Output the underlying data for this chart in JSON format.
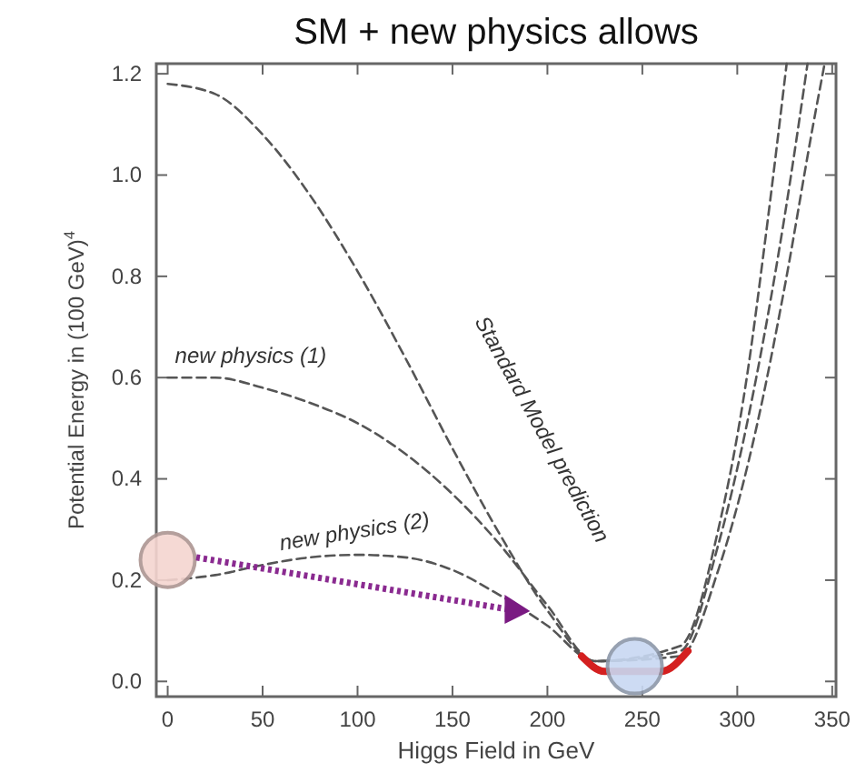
{
  "chart_data": {
    "type": "line",
    "title": "SM + new physics allows",
    "xlabel": "Higgs Field in GeV",
    "ylabel": "Potential Energy in (100 GeV)$^{4}$",
    "xlim": [
      -6,
      352
    ],
    "ylim": [
      -0.03,
      1.22
    ],
    "xticks": [
      0,
      50,
      100,
      150,
      200,
      250,
      300,
      350
    ],
    "yticks": [
      {
        "value": 0,
        "label": "0.0"
      },
      0.2,
      0.4,
      0.6,
      0.8,
      {
        "value": 1,
        "label": "1.0"
      },
      1.2
    ],
    "grid": false,
    "series": [
      {
        "name": "Standard Model prediction",
        "color": "#555555",
        "line_style": "dashed",
        "x": [
          0,
          25,
          50,
          75,
          100,
          125,
          150,
          175,
          200,
          225,
          246,
          270,
          290,
          310,
          325,
          340,
          346
        ],
        "values": [
          1.18,
          1.16,
          1.08,
          0.96,
          0.81,
          0.64,
          0.46,
          0.29,
          0.14,
          0.04,
          null,
          0.05,
          0.22,
          0.5,
          0.78,
          1.1,
          1.22
        ]
      },
      {
        "name": "new physics (1)",
        "color": "#555555",
        "line_style": "dashed",
        "x": [
          0,
          25,
          50,
          75,
          100,
          125,
          150,
          175,
          200,
          225,
          246,
          270,
          290,
          310,
          325,
          337
        ],
        "values": [
          0.6,
          0.6,
          0.58,
          0.55,
          0.51,
          0.45,
          0.37,
          0.27,
          0.15,
          0.04,
          null,
          0.06,
          0.27,
          0.6,
          0.92,
          1.22
        ]
      },
      {
        "name": "new physics (2)",
        "color": "#555555",
        "line_style": "dashed",
        "x": [
          0,
          25,
          50,
          75,
          100,
          125,
          150,
          175,
          200,
          225,
          246,
          270,
          290,
          305,
          315,
          326
        ],
        "values": [
          0.2,
          0.21,
          0.23,
          0.245,
          0.25,
          0.245,
          0.22,
          0.17,
          0.11,
          0.04,
          null,
          0.07,
          0.3,
          0.6,
          0.88,
          1.22
        ]
      },
      {
        "color": "#d42020",
        "line_style": "solid",
        "x": [
          218,
          230,
          246,
          260,
          274
        ],
        "values": [
          0.05,
          0.02,
          null,
          0.02,
          0.06
        ]
      },
      {
        "type": "scatter",
        "marker": "circle",
        "x": [
          0,
          246
        ],
        "values": [
          0.24,
          0.03
        ],
        "colors": [
          "#f5d5d0",
          "#c8d8f2"
        ]
      }
    ]
  }
}
